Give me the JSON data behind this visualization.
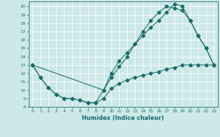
{
  "xlabel": "Humidex (Indice chaleur)",
  "background_color": "#cde8e8",
  "line_color": "#1a6b6b",
  "xlim": [
    -0.5,
    23.5
  ],
  "ylim": [
    8,
    20.6
  ],
  "yticks": [
    8,
    9,
    10,
    11,
    12,
    13,
    14,
    15,
    16,
    17,
    18,
    19,
    20
  ],
  "xticks": [
    0,
    1,
    2,
    3,
    4,
    5,
    6,
    7,
    8,
    9,
    10,
    11,
    12,
    13,
    14,
    15,
    16,
    17,
    18,
    19,
    20,
    21,
    22,
    23
  ],
  "line1_x": [
    0,
    1,
    2,
    3,
    4,
    5,
    6,
    7,
    8,
    9,
    10,
    11,
    12,
    13,
    14,
    15,
    16,
    17,
    18,
    19,
    20,
    21,
    22,
    23
  ],
  "line1_y": [
    13,
    11.5,
    10.3,
    9.5,
    9.0,
    9.0,
    8.8,
    8.5,
    8.5,
    9.0,
    10.2,
    10.8,
    11.2,
    11.5,
    11.8,
    12.0,
    12.2,
    12.5,
    12.7,
    13.0,
    13.0,
    13.0,
    13.0,
    13.0
  ],
  "line2_x": [
    0,
    1,
    2,
    3,
    4,
    5,
    6,
    7,
    8,
    9,
    10,
    11,
    12,
    13,
    14,
    15,
    16,
    17,
    18,
    19,
    20,
    21,
    22,
    23
  ],
  "line2_y": [
    13,
    11.5,
    10.3,
    9.5,
    9.0,
    9.0,
    8.8,
    8.5,
    8.5,
    10.0,
    12.0,
    13.5,
    14.5,
    15.5,
    16.5,
    17.5,
    18.3,
    19.3,
    20.3,
    20.0,
    18.3,
    16.5,
    15.0,
    13.0
  ],
  "line3_x": [
    0,
    9,
    10,
    11,
    12,
    13,
    14,
    15,
    16,
    17,
    18,
    19,
    20,
    21,
    22,
    23
  ],
  "line3_y": [
    13,
    10.0,
    11.5,
    12.8,
    14.0,
    15.5,
    17.0,
    18.3,
    19.3,
    20.0,
    19.8,
    19.5,
    18.3,
    16.5,
    15.0,
    13.0
  ]
}
